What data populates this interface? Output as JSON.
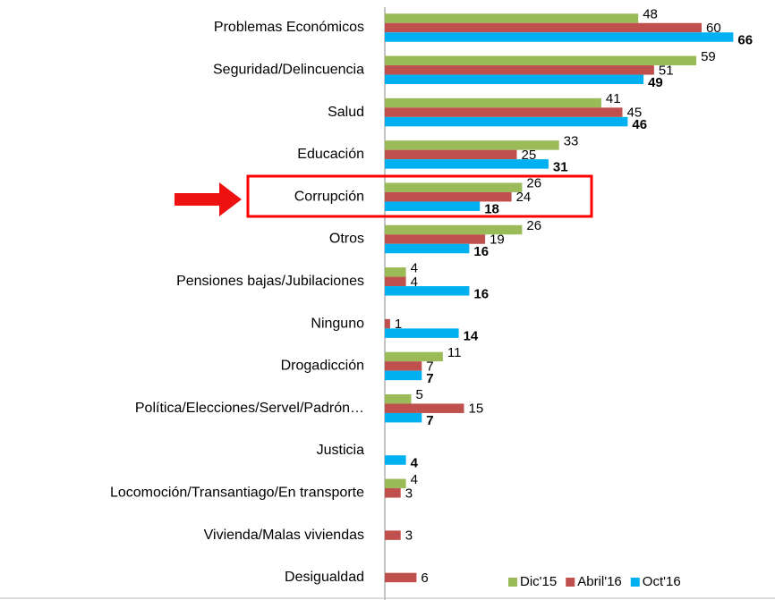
{
  "chart_data": {
    "type": "bar",
    "orientation": "horizontal",
    "categories": [
      "Problemas Económicos",
      "Seguridad/Delincuencia",
      "Salud",
      "Educación",
      "Corrupción",
      "Otros",
      "Pensiones bajas/Jubilaciones",
      "Ninguno",
      "Drogadicción",
      "Política/Elecciones/Servel/Padrón…",
      "Justicia",
      "Locomoción/Transantiago/En transporte",
      "Vivienda/Malas viviendas",
      "Desigualdad"
    ],
    "series": [
      {
        "name": "Dic'15",
        "color": "#9bbb59",
        "values": [
          48,
          59,
          41,
          33,
          26,
          26,
          4,
          null,
          11,
          5,
          null,
          4,
          null,
          null
        ]
      },
      {
        "name": "Abril'16",
        "color": "#c0504d",
        "values": [
          60,
          51,
          45,
          25,
          24,
          19,
          4,
          1,
          7,
          15,
          null,
          3,
          3,
          6
        ]
      },
      {
        "name": "Oct'16",
        "color": "#00b0f0",
        "values": [
          66,
          49,
          46,
          31,
          18,
          16,
          16,
          14,
          7,
          7,
          4,
          null,
          null,
          null
        ]
      }
    ],
    "xlim": [
      0,
      70
    ],
    "legend": "bottom-right"
  }
}
